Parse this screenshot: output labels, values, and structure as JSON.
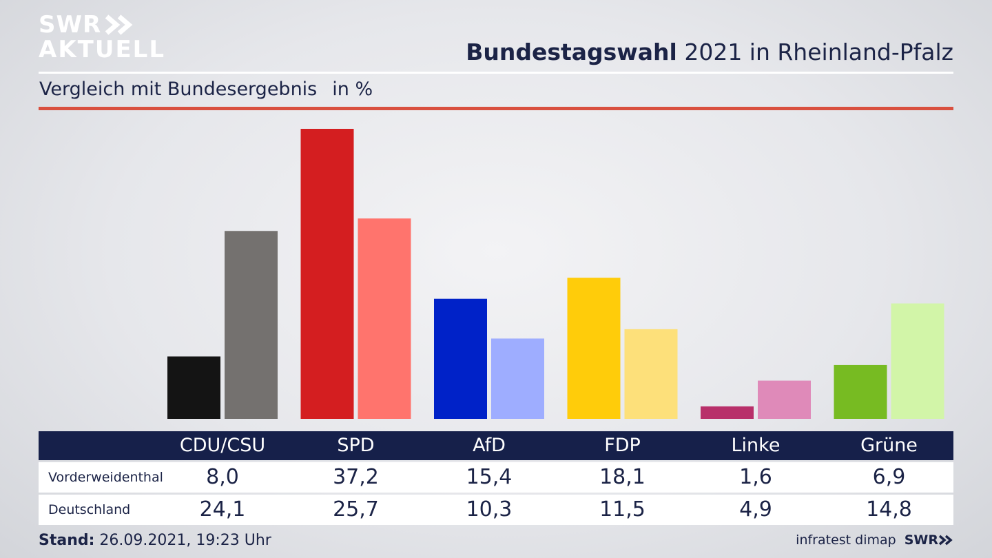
{
  "brand": {
    "line1": "SWR",
    "line2": "AKTUELL",
    "footer_brand": "SWR"
  },
  "header": {
    "title_bold": "Bundestagswahl",
    "title_rest": " 2021 in Rheinland-Pfalz"
  },
  "subtitle": {
    "text": "Vergleich mit Bundesergebnis",
    "unit": "in %"
  },
  "footer": {
    "stand_label": "Stand:",
    "stand_value": " 26.09.2021, 19:23 Uhr",
    "source": "infratest dimap"
  },
  "colors": {
    "header_bg": "#16204a",
    "accent_red": "#d9503f"
  },
  "chart_data": {
    "type": "bar",
    "categories": [
      "CDU/CSU",
      "SPD",
      "AfD",
      "FDP",
      "Linke",
      "Grüne"
    ],
    "series": [
      {
        "name": "Vorderweidenthal",
        "values": [
          8.0,
          37.2,
          15.4,
          18.1,
          1.6,
          6.9
        ],
        "labels": [
          "8,0",
          "37,2",
          "15,4",
          "18,1",
          "1,6",
          "6,9"
        ],
        "colors": [
          "#141414",
          "#d41e20",
          "#0022c8",
          "#ffcc0a",
          "#b8306a",
          "#77bb22"
        ]
      },
      {
        "name": "Deutschland",
        "values": [
          24.1,
          25.7,
          10.3,
          11.5,
          4.9,
          14.8
        ],
        "labels": [
          "24,1",
          "25,7",
          "10,3",
          "11,5",
          "4,9",
          "14,8"
        ],
        "colors": [
          "#74716f",
          "#ff746d",
          "#9eadff",
          "#fde07a",
          "#df8ab9",
          "#d2f5a8"
        ]
      }
    ],
    "ylim": [
      0,
      37.2
    ]
  }
}
